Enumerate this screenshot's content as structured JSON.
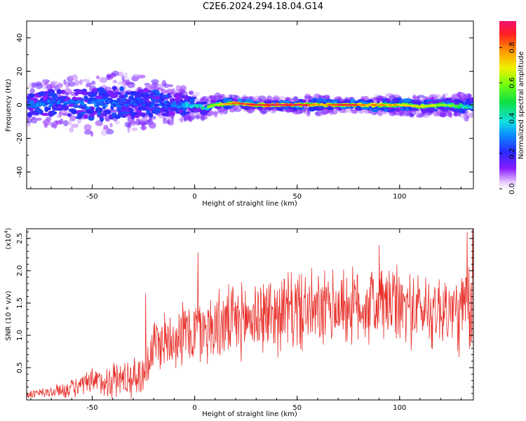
{
  "title": "C2E6.2024.294.18.04.G14",
  "colors": {
    "snr_line": "#e8302a",
    "axis": "#000000"
  },
  "chart_data": [
    {
      "type": "heatmap",
      "xlabel": "Height of straight line (km)",
      "ylabel": "Frequency (Hz)",
      "xlim": [
        -82,
        136
      ],
      "ylim": [
        -50,
        50
      ],
      "xticks": [
        -50,
        0,
        50,
        100
      ],
      "yticks": [
        -40,
        -20,
        0,
        20,
        40
      ],
      "colorbar": {
        "label": "Normalized spectral amplitude",
        "range": [
          0,
          0.95
        ],
        "ticks": [
          0.0,
          0.2,
          0.4,
          0.6,
          0.8
        ],
        "tick_labels": [
          "0.0",
          "0.2",
          "0.4",
          "0.6",
          "0.8"
        ]
      },
      "ridge": {
        "x": [
          -82,
          -70,
          -60,
          -50,
          -40,
          -30,
          -20,
          -10,
          0,
          5,
          10,
          20,
          30,
          40,
          50,
          60,
          70,
          80,
          90,
          100,
          110,
          120,
          136
        ],
        "frequency": [
          0,
          1,
          1,
          0,
          1,
          2,
          1,
          0,
          0,
          -2,
          0,
          1,
          0,
          0,
          0,
          0,
          0,
          0,
          0,
          0,
          -1,
          0,
          -1
        ],
        "amplitude": [
          0.4,
          0.35,
          0.35,
          0.35,
          0.35,
          0.3,
          0.3,
          0.35,
          0.5,
          0.55,
          0.65,
          0.9,
          0.9,
          0.95,
          0.95,
          0.75,
          0.9,
          0.85,
          0.8,
          0.75,
          0.7,
          0.65,
          0.5
        ],
        "spread_hz": [
          6,
          7,
          8,
          9,
          9,
          9,
          7,
          6,
          4,
          3,
          3,
          2,
          2,
          2,
          2,
          3,
          2,
          2,
          3,
          3,
          3,
          3,
          4
        ]
      }
    },
    {
      "type": "line",
      "xlabel": "Height of straight line (km)",
      "ylabel": "SNR (10 * v/v)",
      "scale_note": "(x10",
      "scale_exp": "4",
      "xlim": [
        -82,
        136
      ],
      "ylim": [
        0,
        26500
      ],
      "xticks": [
        -50,
        0,
        50,
        100
      ],
      "yticks": [
        5000,
        10000,
        15000,
        20000,
        25000
      ],
      "ytick_labels": [
        "0.5",
        "1.0",
        "1.5",
        "2.0",
        "2.5"
      ],
      "envelope": {
        "x": [
          -82,
          -70,
          -60,
          -50,
          -40,
          -30,
          -25,
          -20,
          -10,
          0,
          10,
          20,
          30,
          40,
          50,
          60,
          70,
          80,
          90,
          100,
          110,
          120,
          130,
          136
        ],
        "mean": [
          800,
          1200,
          1800,
          2600,
          3200,
          3500,
          4000,
          8500,
          10000,
          10500,
          11500,
          12000,
          13000,
          13500,
          14000,
          13500,
          14500,
          14500,
          15000,
          14500,
          14000,
          14000,
          13500,
          14000
        ],
        "amplitude": [
          600,
          900,
          1300,
          2000,
          2700,
          2800,
          3000,
          4000,
          4500,
          5000,
          5000,
          5200,
          5500,
          5500,
          5800,
          5500,
          5500,
          5500,
          6000,
          5500,
          5200,
          5500,
          6000,
          7000
        ]
      },
      "peaks": [
        {
          "x": 1.5,
          "y": 22800
        },
        {
          "x": 90,
          "y": 24000
        },
        {
          "x": 133,
          "y": 26000
        },
        {
          "x": 135.5,
          "y": 26500
        },
        {
          "x": -24,
          "y": 16500
        }
      ]
    }
  ]
}
